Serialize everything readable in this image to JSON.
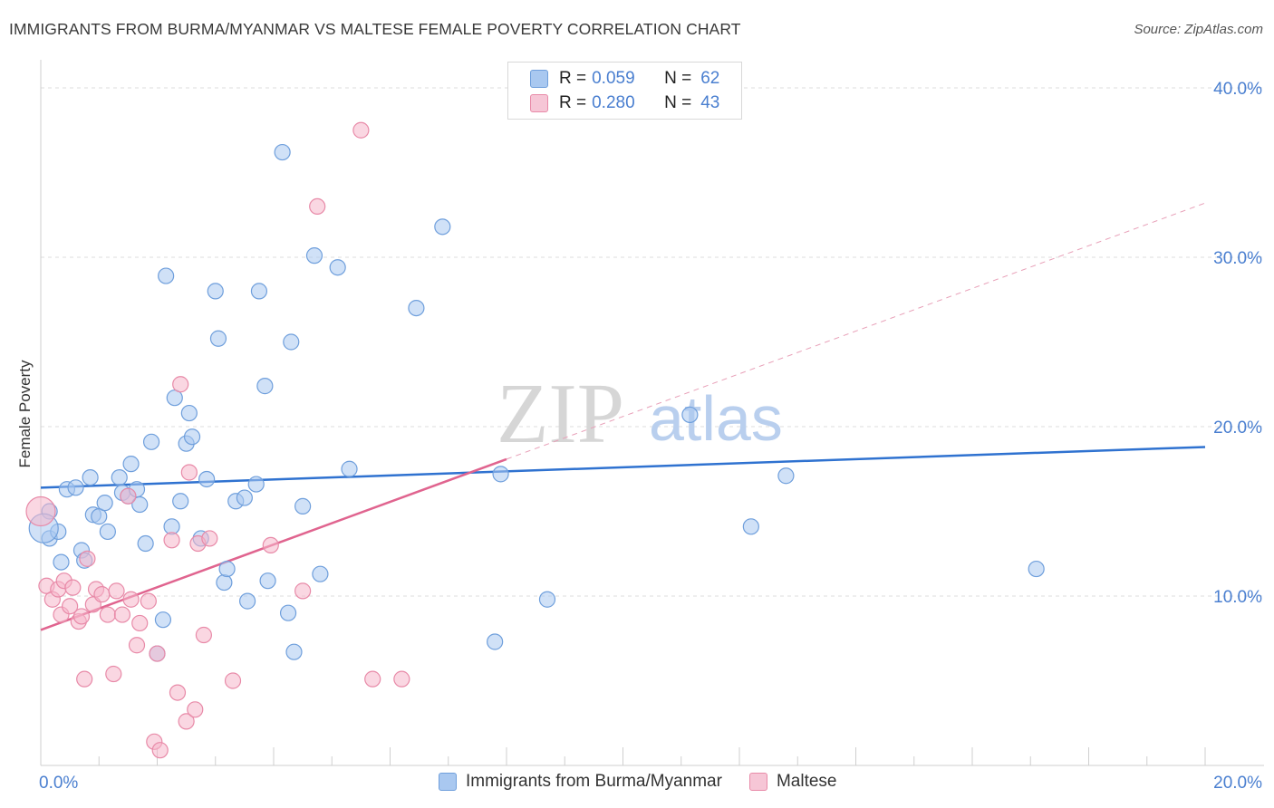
{
  "header": {
    "title": "IMMIGRANTS FROM BURMA/MYANMAR VS MALTESE FEMALE POVERTY CORRELATION CHART",
    "source": "Source: ZipAtlas.com"
  },
  "watermark": {
    "zip": "ZIP",
    "atlas": "atlas"
  },
  "legend_top": {
    "rows": [
      {
        "r_label": "R =",
        "r_value": "0.059",
        "n_label": "N =",
        "n_value": "62"
      },
      {
        "r_label": "R =",
        "r_value": "0.280",
        "n_label": "N =",
        "n_value": "43"
      }
    ]
  },
  "legend_bottom": {
    "items": [
      {
        "label": "Immigrants from Burma/Myanmar"
      },
      {
        "label": "Maltese"
      }
    ]
  },
  "colors": {
    "blue_fill": "#a9c8f0",
    "blue_stroke": "#6f9fdc",
    "blue_line": "#2f72d0",
    "pink_fill": "#f6b7cb",
    "pink_stroke": "#e88aa8",
    "pink_line": "#e0648f",
    "tick_label": "#4a7fd0",
    "grid": "#dcdcdc"
  },
  "chart_data": {
    "type": "scatter",
    "title": "IMMIGRANTS FROM BURMA/MYANMAR VS MALTESE FEMALE POVERTY CORRELATION CHART",
    "xlabel": "",
    "ylabel": "Female Poverty",
    "xlim": [
      0,
      20
    ],
    "ylim": [
      0,
      40
    ],
    "x_tick_labels": [
      "0.0%",
      "20.0%"
    ],
    "y_ticks": [
      10,
      20,
      30,
      40
    ],
    "y_tick_labels": [
      "10.0%",
      "20.0%",
      "30.0%",
      "40.0%"
    ],
    "grid": true,
    "legend_position": "top-center",
    "series": [
      {
        "name": "Immigrants from Burma/Myanmar",
        "color": "#a9c8f0",
        "r": 0.059,
        "n": 62,
        "trend": {
          "x": [
            0,
            20
          ],
          "y": [
            16.4,
            18.8
          ]
        },
        "points": [
          [
            0.15,
            15.0
          ],
          [
            0.15,
            13.4
          ],
          [
            0.3,
            13.8
          ],
          [
            0.35,
            12.0
          ],
          [
            0.45,
            16.3
          ],
          [
            0.6,
            16.4
          ],
          [
            0.7,
            12.7
          ],
          [
            0.75,
            12.1
          ],
          [
            0.85,
            17.0
          ],
          [
            0.9,
            14.8
          ],
          [
            1.0,
            14.7
          ],
          [
            1.1,
            15.5
          ],
          [
            1.15,
            13.8
          ],
          [
            1.35,
            17.0
          ],
          [
            1.4,
            16.1
          ],
          [
            1.5,
            15.9
          ],
          [
            1.55,
            17.8
          ],
          [
            1.65,
            16.3
          ],
          [
            1.7,
            15.4
          ],
          [
            1.8,
            13.1
          ],
          [
            1.9,
            19.1
          ],
          [
            2.0,
            6.6
          ],
          [
            2.1,
            8.6
          ],
          [
            2.15,
            28.9
          ],
          [
            2.25,
            14.1
          ],
          [
            2.3,
            21.7
          ],
          [
            2.4,
            15.6
          ],
          [
            2.5,
            19.0
          ],
          [
            2.55,
            20.8
          ],
          [
            2.6,
            19.4
          ],
          [
            2.75,
            13.4
          ],
          [
            2.85,
            16.9
          ],
          [
            3.0,
            28.0
          ],
          [
            3.05,
            25.2
          ],
          [
            3.15,
            10.8
          ],
          [
            3.2,
            11.6
          ],
          [
            3.35,
            15.6
          ],
          [
            3.5,
            15.8
          ],
          [
            3.55,
            9.7
          ],
          [
            3.7,
            16.6
          ],
          [
            3.75,
            28.0
          ],
          [
            3.85,
            22.4
          ],
          [
            3.9,
            10.9
          ],
          [
            4.15,
            36.2
          ],
          [
            4.25,
            9.0
          ],
          [
            4.3,
            25.0
          ],
          [
            4.35,
            6.7
          ],
          [
            4.5,
            15.3
          ],
          [
            4.7,
            30.1
          ],
          [
            4.8,
            11.3
          ],
          [
            5.1,
            29.4
          ],
          [
            5.3,
            17.5
          ],
          [
            6.45,
            27.0
          ],
          [
            6.9,
            31.8
          ],
          [
            7.8,
            7.3
          ],
          [
            7.9,
            17.2
          ],
          [
            8.7,
            9.8
          ],
          [
            11.15,
            20.7
          ],
          [
            12.2,
            14.1
          ],
          [
            12.8,
            17.1
          ],
          [
            17.1,
            11.6
          ],
          [
            0.05,
            14.0
          ]
        ]
      },
      {
        "name": "Maltese",
        "color": "#f6b7cb",
        "r": 0.28,
        "n": 43,
        "trend": {
          "x": [
            0,
            20
          ],
          "y": [
            8.0,
            33.2
          ]
        },
        "points": [
          [
            0.0,
            15.0
          ],
          [
            0.1,
            10.6
          ],
          [
            0.2,
            9.8
          ],
          [
            0.3,
            10.4
          ],
          [
            0.35,
            8.9
          ],
          [
            0.4,
            10.9
          ],
          [
            0.5,
            9.4
          ],
          [
            0.55,
            10.5
          ],
          [
            0.65,
            8.5
          ],
          [
            0.7,
            8.8
          ],
          [
            0.75,
            5.1
          ],
          [
            0.8,
            12.2
          ],
          [
            0.9,
            9.5
          ],
          [
            0.95,
            10.4
          ],
          [
            1.05,
            10.1
          ],
          [
            1.15,
            8.9
          ],
          [
            1.25,
            5.4
          ],
          [
            1.3,
            10.3
          ],
          [
            1.4,
            8.9
          ],
          [
            1.5,
            15.9
          ],
          [
            1.55,
            9.8
          ],
          [
            1.65,
            7.1
          ],
          [
            1.7,
            8.4
          ],
          [
            1.85,
            9.7
          ],
          [
            1.95,
            1.4
          ],
          [
            2.0,
            6.6
          ],
          [
            2.05,
            0.9
          ],
          [
            2.25,
            13.3
          ],
          [
            2.35,
            4.3
          ],
          [
            2.4,
            22.5
          ],
          [
            2.5,
            2.6
          ],
          [
            2.55,
            17.3
          ],
          [
            2.65,
            3.3
          ],
          [
            2.7,
            13.1
          ],
          [
            2.8,
            7.7
          ],
          [
            2.9,
            13.4
          ],
          [
            3.3,
            5.0
          ],
          [
            3.95,
            13.0
          ],
          [
            4.5,
            10.3
          ],
          [
            4.75,
            33.0
          ],
          [
            5.5,
            37.5
          ],
          [
            5.7,
            5.1
          ],
          [
            6.2,
            5.1
          ]
        ]
      }
    ]
  }
}
